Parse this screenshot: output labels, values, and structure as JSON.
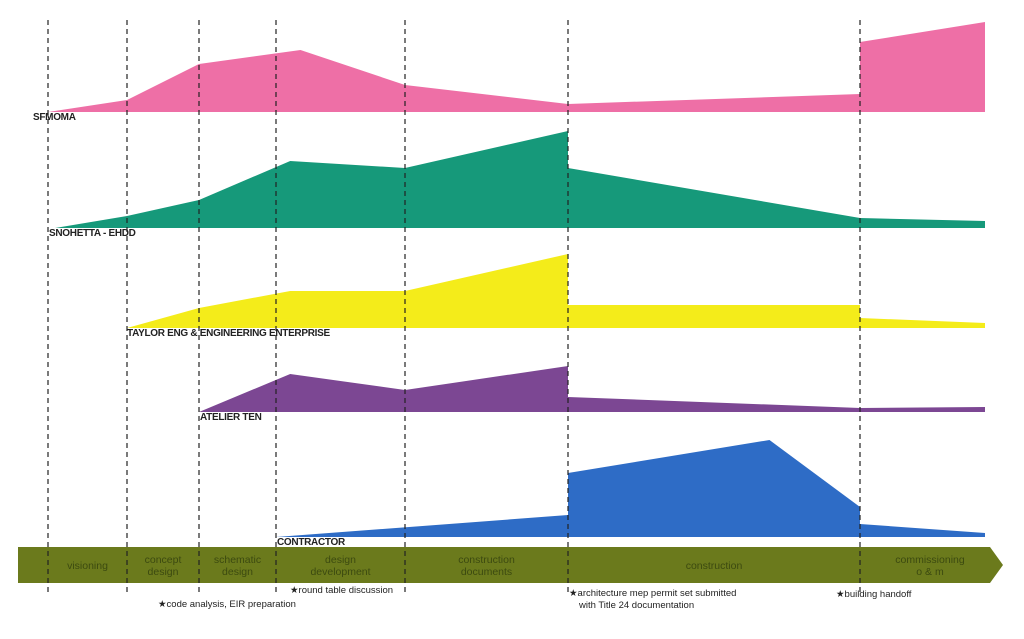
{
  "chart_data": {
    "type": "area",
    "title": "",
    "x_unit": "phase index (0 = start of visioning, 7 = end of commissioning)",
    "y_unit": "relative involvement (0-1)",
    "series": [
      {
        "name": "SFMOMA",
        "color": "#ee6fa6",
        "points": [
          [
            0,
            0
          ],
          [
            1,
            0.12
          ],
          [
            2,
            0.48
          ],
          [
            3.19,
            0.62
          ],
          [
            4,
            0.27
          ],
          [
            5,
            0.08
          ],
          [
            6,
            0.18
          ],
          [
            6,
            0.7
          ],
          [
            7,
            0.9
          ]
        ]
      },
      {
        "name": "SNOHETTA - EHDD",
        "color": "#16997a",
        "points": [
          [
            0.09,
            0
          ],
          [
            1,
            0.12
          ],
          [
            2,
            0.28
          ],
          [
            3.11,
            0.67
          ],
          [
            4,
            0.6
          ],
          [
            5,
            0.97
          ],
          [
            5,
            0.6
          ],
          [
            6,
            0.1
          ],
          [
            7,
            0.07
          ]
        ]
      },
      {
        "name": "TAYLOR ENG & ENGINEERING ENTERPRISE",
        "color": "#f4ec1a",
        "points": [
          [
            1,
            0
          ],
          [
            2,
            0.2
          ],
          [
            3.11,
            0.37
          ],
          [
            4,
            0.37
          ],
          [
            5,
            0.74
          ],
          [
            5,
            0.23
          ],
          [
            6,
            0.23
          ],
          [
            6,
            0.1
          ],
          [
            7,
            0.05
          ]
        ]
      },
      {
        "name": "ATELIER TEN",
        "color": "#7c4793",
        "points": [
          [
            2,
            0
          ],
          [
            3.11,
            0.38
          ],
          [
            4,
            0.22
          ],
          [
            5,
            0.46
          ],
          [
            5,
            0.15
          ],
          [
            6,
            0.04
          ],
          [
            7,
            0.05
          ]
        ]
      },
      {
        "name": "CONTRACTOR",
        "color": "#2e6cc6",
        "points": [
          [
            3,
            0
          ],
          [
            5,
            0.22
          ],
          [
            5,
            0.64
          ],
          [
            5.69,
            0.97
          ],
          [
            6,
            0.3
          ],
          [
            6,
            0.13
          ],
          [
            7,
            0.04
          ]
        ]
      }
    ]
  },
  "phases": [
    {
      "line1": "visioning",
      "line2": ""
    },
    {
      "line1": "concept",
      "line2": "design"
    },
    {
      "line1": "schematic",
      "line2": "design"
    },
    {
      "line1": "design",
      "line2": "development"
    },
    {
      "line1": "construction",
      "line2": "documents"
    },
    {
      "line1": "construction",
      "line2": ""
    },
    {
      "line1": "commissioning",
      "line2": "o & m"
    }
  ],
  "phase_bar_color": "#6b7a1c",
  "milestones": [
    {
      "star": "★",
      "text": "code analysis, EIR preparation",
      "text2": ""
    },
    {
      "star": "★",
      "text": "round table discussion",
      "text2": ""
    },
    {
      "star": "★",
      "text": "architecture mep permit set submitted",
      "text2": "with Title 24 documentation"
    },
    {
      "star": "★",
      "text": "building handoff",
      "text2": ""
    }
  ]
}
